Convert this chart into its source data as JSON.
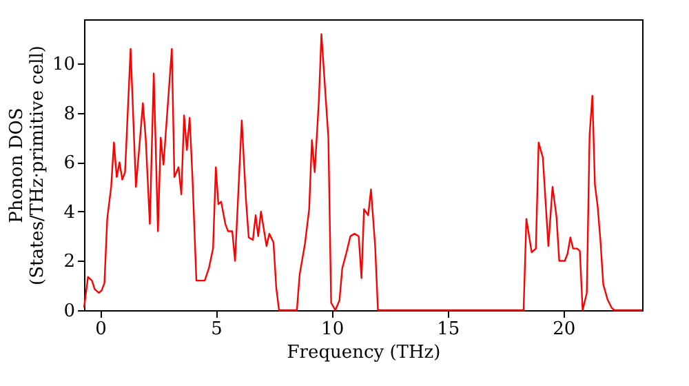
{
  "chart_data": {
    "type": "line",
    "xlabel": "Frequency (THz)",
    "ylabel": "Phonon DOS\n(States/THz·primitive cell)",
    "xlim": [
      -0.7,
      23.4
    ],
    "xticks": [
      0,
      5,
      10,
      15,
      20
    ],
    "ylim": [
      0,
      11.8
    ],
    "yticks": [
      0,
      2,
      4,
      6,
      8,
      10
    ],
    "grid": false,
    "marker": "none",
    "line_style": "solid",
    "series": [
      {
        "color": "#ff0000",
        "x": [
          -0.7,
          -0.53,
          -0.36,
          -0.24,
          -0.06,
          0.06,
          0.18,
          0.3,
          0.47,
          0.59,
          0.71,
          0.83,
          0.95,
          1.07,
          1.31,
          1.54,
          1.72,
          1.84,
          1.96,
          2.14,
          2.31,
          2.49,
          2.61,
          2.73,
          3.09,
          3.2,
          3.38,
          3.5,
          3.62,
          3.74,
          3.86,
          3.98,
          4.15,
          4.51,
          4.69,
          4.87,
          4.99,
          5.1,
          5.22,
          5.4,
          5.52,
          5.7,
          5.82,
          6.11,
          6.29,
          6.41,
          6.59,
          6.71,
          6.82,
          6.94,
          7.18,
          7.3,
          7.48,
          7.6,
          7.72,
          8.49,
          8.61,
          8.84,
          9.02,
          9.14,
          9.26,
          9.44,
          9.55,
          9.85,
          9.97,
          10.15,
          10.33,
          10.45,
          10.62,
          10.8,
          10.98,
          11.16,
          11.28,
          11.39,
          11.57,
          11.69,
          11.87,
          11.99,
          18.28,
          18.4,
          18.63,
          18.81,
          18.93,
          19.11,
          19.35,
          19.53,
          19.7,
          19.82,
          20.06,
          20.18,
          20.3,
          20.42,
          20.59,
          20.71,
          20.83,
          21.01,
          21.13,
          21.25,
          21.36,
          21.48,
          21.6,
          21.72,
          21.9,
          22.08,
          22.2,
          23.4
        ],
        "values": [
          0.1,
          1.35,
          1.2,
          0.85,
          0.7,
          0.8,
          1.1,
          3.7,
          5.0,
          6.8,
          5.4,
          6.0,
          5.3,
          5.6,
          10.6,
          5.0,
          7.0,
          8.4,
          7.0,
          3.5,
          9.6,
          3.2,
          7.0,
          5.9,
          10.6,
          5.4,
          5.8,
          4.7,
          7.9,
          6.5,
          7.8,
          5.4,
          1.2,
          1.2,
          1.7,
          2.5,
          5.8,
          4.3,
          4.4,
          3.5,
          3.2,
          3.2,
          2.0,
          7.7,
          4.5,
          2.95,
          2.85,
          3.85,
          3.0,
          4.0,
          2.6,
          3.1,
          2.75,
          0.9,
          0,
          0,
          1.45,
          2.7,
          4.1,
          6.9,
          5.6,
          8.5,
          11.2,
          7.0,
          0.3,
          0,
          0.4,
          1.7,
          2.3,
          3.0,
          3.1,
          3.0,
          1.3,
          4.1,
          3.85,
          4.9,
          2.6,
          0,
          0,
          3.7,
          2.35,
          2.5,
          6.8,
          6.2,
          2.6,
          5.0,
          3.8,
          2.0,
          2.0,
          2.3,
          2.95,
          2.5,
          2.5,
          2.4,
          0,
          0.7,
          7.1,
          8.7,
          5.1,
          4.2,
          2.8,
          1.05,
          0.45,
          0.1,
          0,
          0
        ]
      }
    ]
  }
}
